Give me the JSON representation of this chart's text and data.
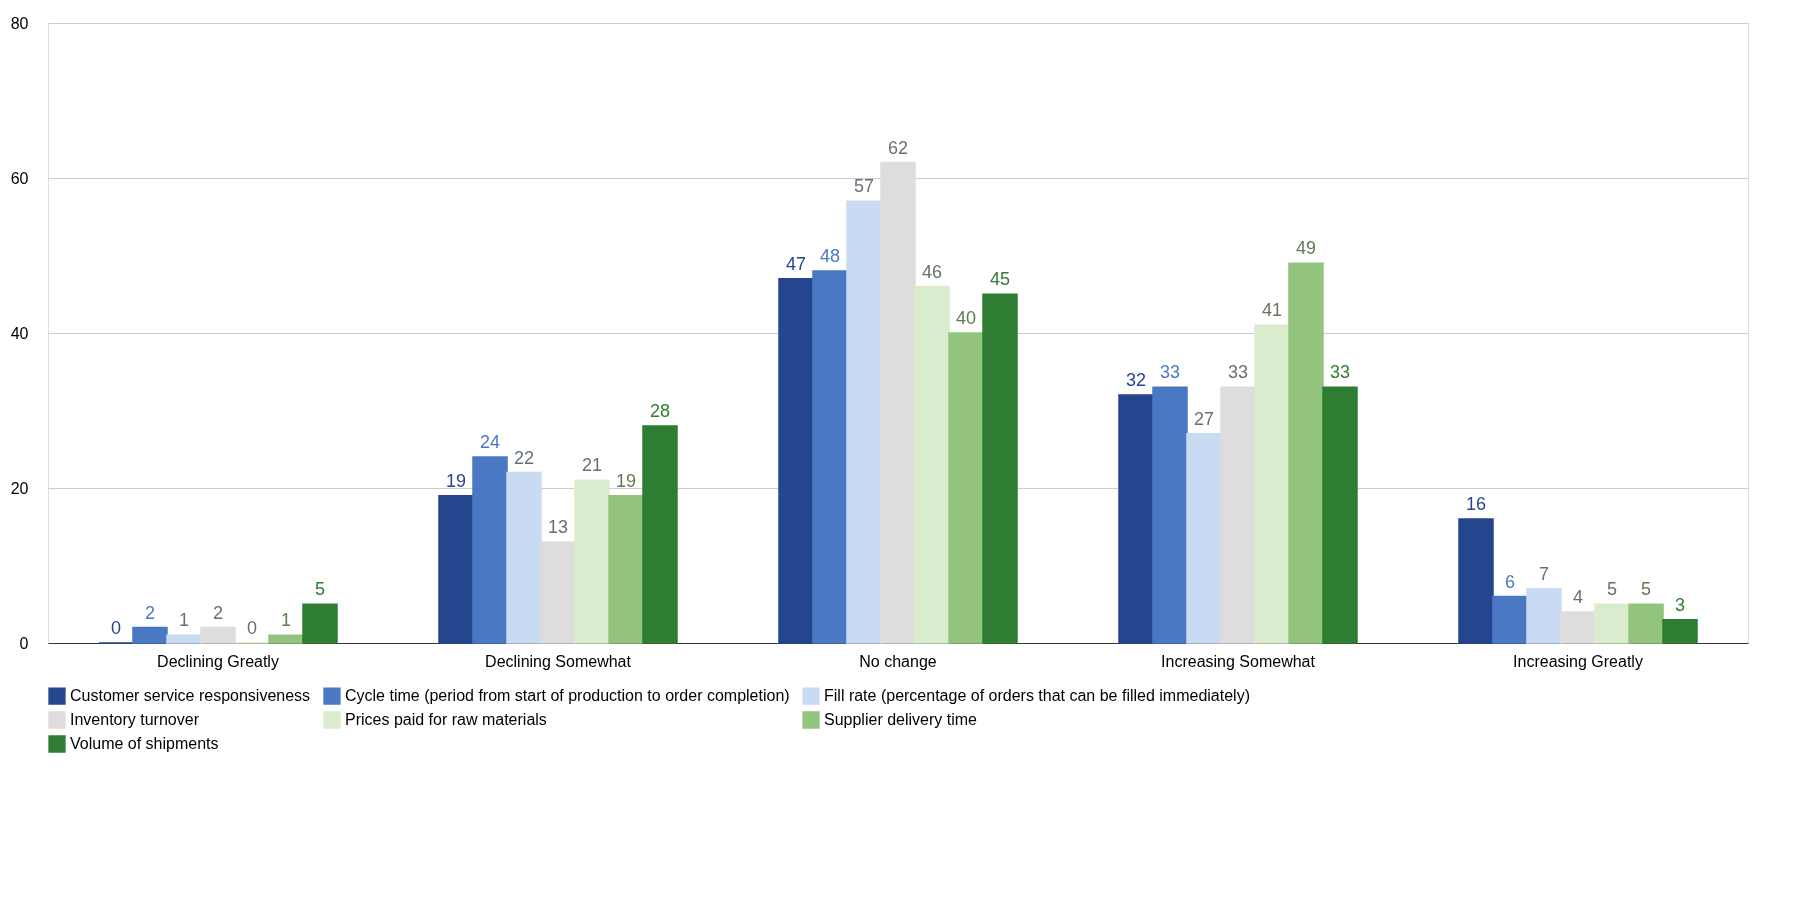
{
  "chart_data": {
    "type": "bar",
    "categories": [
      "Declining Greatly",
      "Declining Somewhat",
      "No change",
      "Increasing Somewhat",
      "Increasing Greatly"
    ],
    "series": [
      {
        "name": "Customer service responsiveness",
        "color": "#24468e",
        "values": [
          0,
          19,
          47,
          32,
          16
        ]
      },
      {
        "name": "Cycle time (period from start of production to order completion)",
        "color": "#4a78c2",
        "values": [
          2,
          24,
          48,
          33,
          6
        ]
      },
      {
        "name": "Fill rate (percentage of orders that can be filled immediately)",
        "color": "#c9daf3",
        "values": [
          1,
          22,
          57,
          27,
          7
        ]
      },
      {
        "name": "Inventory turnover",
        "color": "#dedcdc",
        "values": [
          2,
          13,
          62,
          33,
          4
        ]
      },
      {
        "name": "Prices paid for raw materials",
        "color": "#d9eccd",
        "values": [
          0,
          21,
          46,
          41,
          5
        ]
      },
      {
        "name": "Supplier delivery time",
        "color": "#93c47d",
        "values": [
          1,
          19,
          40,
          49,
          5
        ]
      },
      {
        "name": "Volume of shipments",
        "color": "#2e7d32",
        "values": [
          5,
          28,
          45,
          33,
          3
        ]
      }
    ],
    "ylim": [
      0,
      80
    ],
    "yticks": [
      0,
      20,
      40,
      60,
      80
    ],
    "grid": "y",
    "legend": "bottom",
    "data_labels": true
  }
}
